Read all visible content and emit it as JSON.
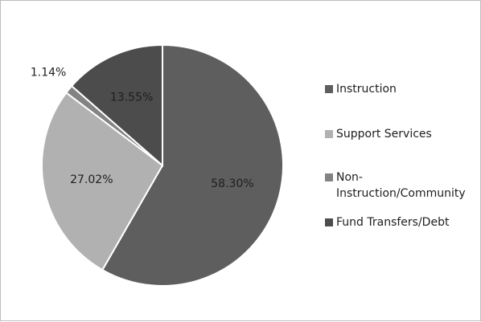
{
  "chart_data": {
    "type": "pie",
    "categories": [
      "Instruction",
      "Support Services",
      "Non-Instruction/Community",
      "Fund Transfers/Debt"
    ],
    "values": [
      58.3,
      27.02,
      1.14,
      13.55
    ],
    "data_labels": [
      "58.30%",
      "27.02%",
      "1.14%",
      "13.55%"
    ],
    "legend": {
      "position": "right",
      "entries": [
        {
          "lines": [
            "Instruction"
          ]
        },
        {
          "lines": [
            "Support Services"
          ]
        },
        {
          "lines": [
            "Non-",
            "Instruction/Community"
          ]
        },
        {
          "lines": [
            "Fund Transfers/Debt"
          ]
        }
      ]
    },
    "colors": [
      "#5e5e5e",
      "#b1b1b1",
      "#838383",
      "#4c4c4c"
    ],
    "grid": false,
    "start_angle_deg": 0,
    "direction": "clockwise"
  }
}
